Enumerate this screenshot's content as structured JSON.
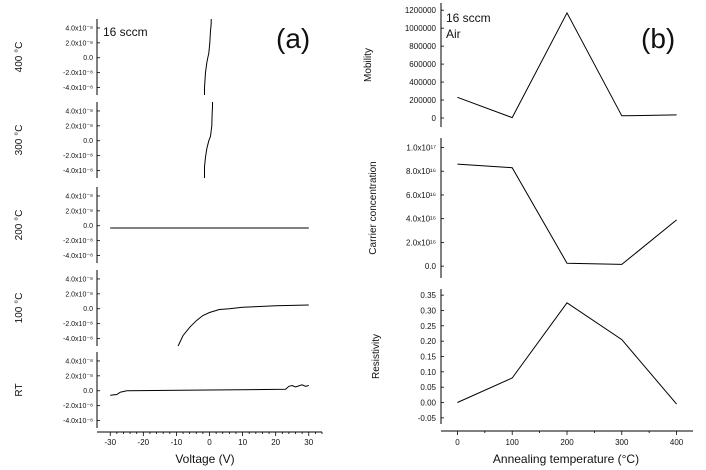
{
  "figure": {
    "panel_a_label": "(a)",
    "panel_b_label": "(b)",
    "panel_a_annotation": "16 sccm",
    "panel_b_annotation_1": "16 sccm",
    "panel_b_annotation_2": "Air",
    "panel_a_xlabel": "Voltage (V)",
    "panel_b_xlabel": "Annealing temperature (°C)"
  },
  "chart_data": [
    {
      "type": "line",
      "panel": "a",
      "stack": true,
      "x_ticks": [
        -30,
        -20,
        -10,
        0,
        10,
        20,
        30
      ],
      "x_tick_labels": [
        "-30",
        "-20",
        "-10",
        "0",
        "10",
        "20",
        "30"
      ],
      "xlabel": "Voltage (V)",
      "xlim": [
        -34,
        34
      ],
      "y_tick_labels": [
        "4.0x10⁻⁸",
        "2.0x10⁻⁸",
        "0.0",
        "-2.0x10⁻⁸",
        "-4.0x10⁻⁸"
      ],
      "y_tick_values": [
        4.0,
        2.0,
        0.0,
        -2.0,
        -4.0
      ],
      "ylim": [
        -5.0,
        5.2
      ],
      "y_unit": "x10⁻⁸",
      "subplots": [
        {
          "ylabel": "400 °C",
          "x": [
            -1.5,
            -1.5,
            -1.2,
            -0.8,
            -0.5,
            -0.2,
            0.1,
            0.3,
            0.5,
            0.5
          ],
          "y": [
            -5.0,
            -4.0,
            -2.0,
            -0.6,
            0.0,
            0.6,
            2.0,
            3.6,
            4.6,
            5.2
          ]
        },
        {
          "ylabel": "300 °C",
          "x": [
            -1.5,
            -1.5,
            -1.2,
            -0.8,
            -0.2,
            0.3,
            0.7,
            0.8,
            0.9,
            0.9
          ],
          "y": [
            -5.0,
            -3.5,
            -2.2,
            -1.0,
            0.0,
            0.6,
            2.0,
            3.5,
            4.6,
            5.2
          ]
        },
        {
          "ylabel": "200 °C",
          "x": [
            -30,
            30
          ],
          "y": [
            -0.3,
            -0.3
          ]
        },
        {
          "ylabel": "100 °C",
          "x": [
            -9.5,
            -8,
            -6,
            -4,
            -2,
            0,
            3,
            6,
            10,
            20,
            30
          ],
          "y": [
            -5.0,
            -3.6,
            -2.5,
            -1.6,
            -0.9,
            -0.5,
            -0.1,
            0.0,
            0.2,
            0.4,
            0.5
          ]
        },
        {
          "ylabel": "RT",
          "x": [
            -30,
            -28,
            -27,
            -25,
            0,
            23,
            24,
            25,
            26,
            28,
            29,
            30
          ],
          "y": [
            -0.6,
            -0.5,
            -0.2,
            0.0,
            0.1,
            0.2,
            0.6,
            0.7,
            0.5,
            0.8,
            0.6,
            0.7
          ]
        }
      ]
    },
    {
      "type": "line",
      "panel": "b",
      "xlabel": "Annealing temperature (°C)",
      "x_ticks": [
        0,
        100,
        200,
        300,
        400
      ],
      "xlim": [
        -30,
        430
      ],
      "subplots": [
        {
          "ylabel": "Mobility",
          "x": [
            0,
            100,
            200,
            300,
            400
          ],
          "y": [
            230000,
            5000,
            1170000,
            25000,
            35000
          ],
          "y_ticks": [
            0,
            200000,
            400000,
            600000,
            800000,
            1000000,
            1200000
          ],
          "y_tick_labels": [
            "0",
            "200000",
            "400000",
            "600000",
            "800000",
            "1000000",
            "1200000"
          ],
          "ylim": [
            -100000,
            1280000
          ]
        },
        {
          "ylabel": "Carrier concentration",
          "x": [
            0,
            100,
            200,
            300,
            400
          ],
          "y": [
            8.6e+16,
            8.3e+16,
            2500000000000000.0,
            1500000000000000.0,
            3.9e+16
          ],
          "y_ticks": [
            0,
            2e+16,
            4e+16,
            6e+16,
            8e+16,
            1e+17
          ],
          "y_tick_labels": [
            "0.0",
            "2.0x10¹⁶",
            "4.0x10¹⁶",
            "6.0x10¹⁶",
            "8.0x10¹⁶",
            "1.0x10¹⁷"
          ],
          "ylim": [
            -1e+16,
            1.08e+17
          ]
        },
        {
          "ylabel": "Resistivity",
          "x": [
            0,
            100,
            200,
            300,
            400
          ],
          "y": [
            0.0,
            0.08,
            0.325,
            0.205,
            -0.005
          ],
          "y_ticks": [
            -0.05,
            0.0,
            0.05,
            0.1,
            0.15,
            0.2,
            0.25,
            0.3,
            0.35
          ],
          "y_tick_labels": [
            "-0.05",
            "0.00",
            "0.05",
            "0.10",
            "0.15",
            "0.20",
            "0.25",
            "0.30",
            "0.35"
          ],
          "ylim": [
            -0.07,
            0.37
          ]
        }
      ]
    }
  ]
}
